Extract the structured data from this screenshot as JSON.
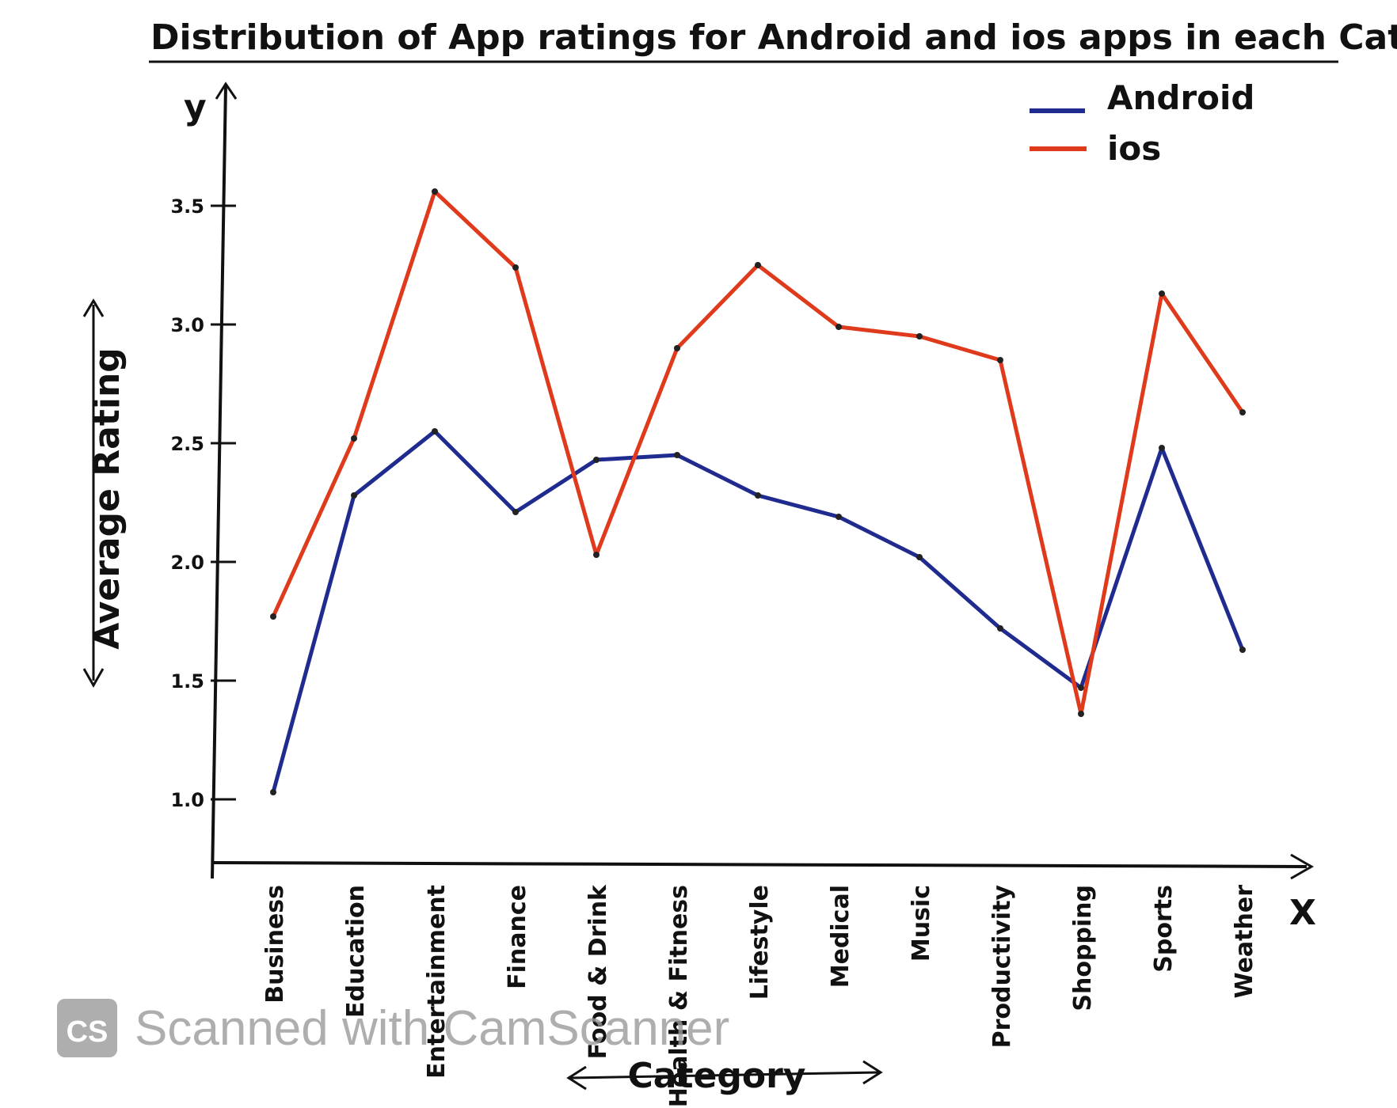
{
  "chart_data": {
    "type": "line",
    "title": "Distribution of App ratings for Android and ios apps in each Category.",
    "xlabel": "Category",
    "ylabel": "Average Rating",
    "x_axis_letter": "X",
    "y_axis_letter": "y",
    "categories": [
      "Business",
      "Education",
      "Entertainment",
      "Finance",
      "Food & Drink",
      "Health & Fitness",
      "Lifestyle",
      "Medical",
      "Music",
      "Productivity",
      "Shopping",
      "Sports",
      "Weather"
    ],
    "y_ticks": [
      "1.0",
      "1.5",
      "2.0",
      "2.5",
      "3.0",
      "3.5"
    ],
    "ylim": [
      0.8,
      3.8
    ],
    "series": [
      {
        "name": "Android",
        "color": "#1f2b8f",
        "values": [
          1.03,
          2.28,
          2.55,
          2.21,
          2.43,
          2.45,
          2.28,
          2.19,
          2.02,
          1.72,
          1.47,
          2.48,
          1.63
        ]
      },
      {
        "name": "ios",
        "color": "#e03a1c",
        "values": [
          1.77,
          2.52,
          3.56,
          3.24,
          2.03,
          2.9,
          3.25,
          2.99,
          2.95,
          2.85,
          1.36,
          3.13,
          2.63
        ]
      }
    ],
    "legend_position": "top-right",
    "grid": false
  },
  "watermark": {
    "logo_text": "CS",
    "text": "Scanned with CamScanner"
  }
}
